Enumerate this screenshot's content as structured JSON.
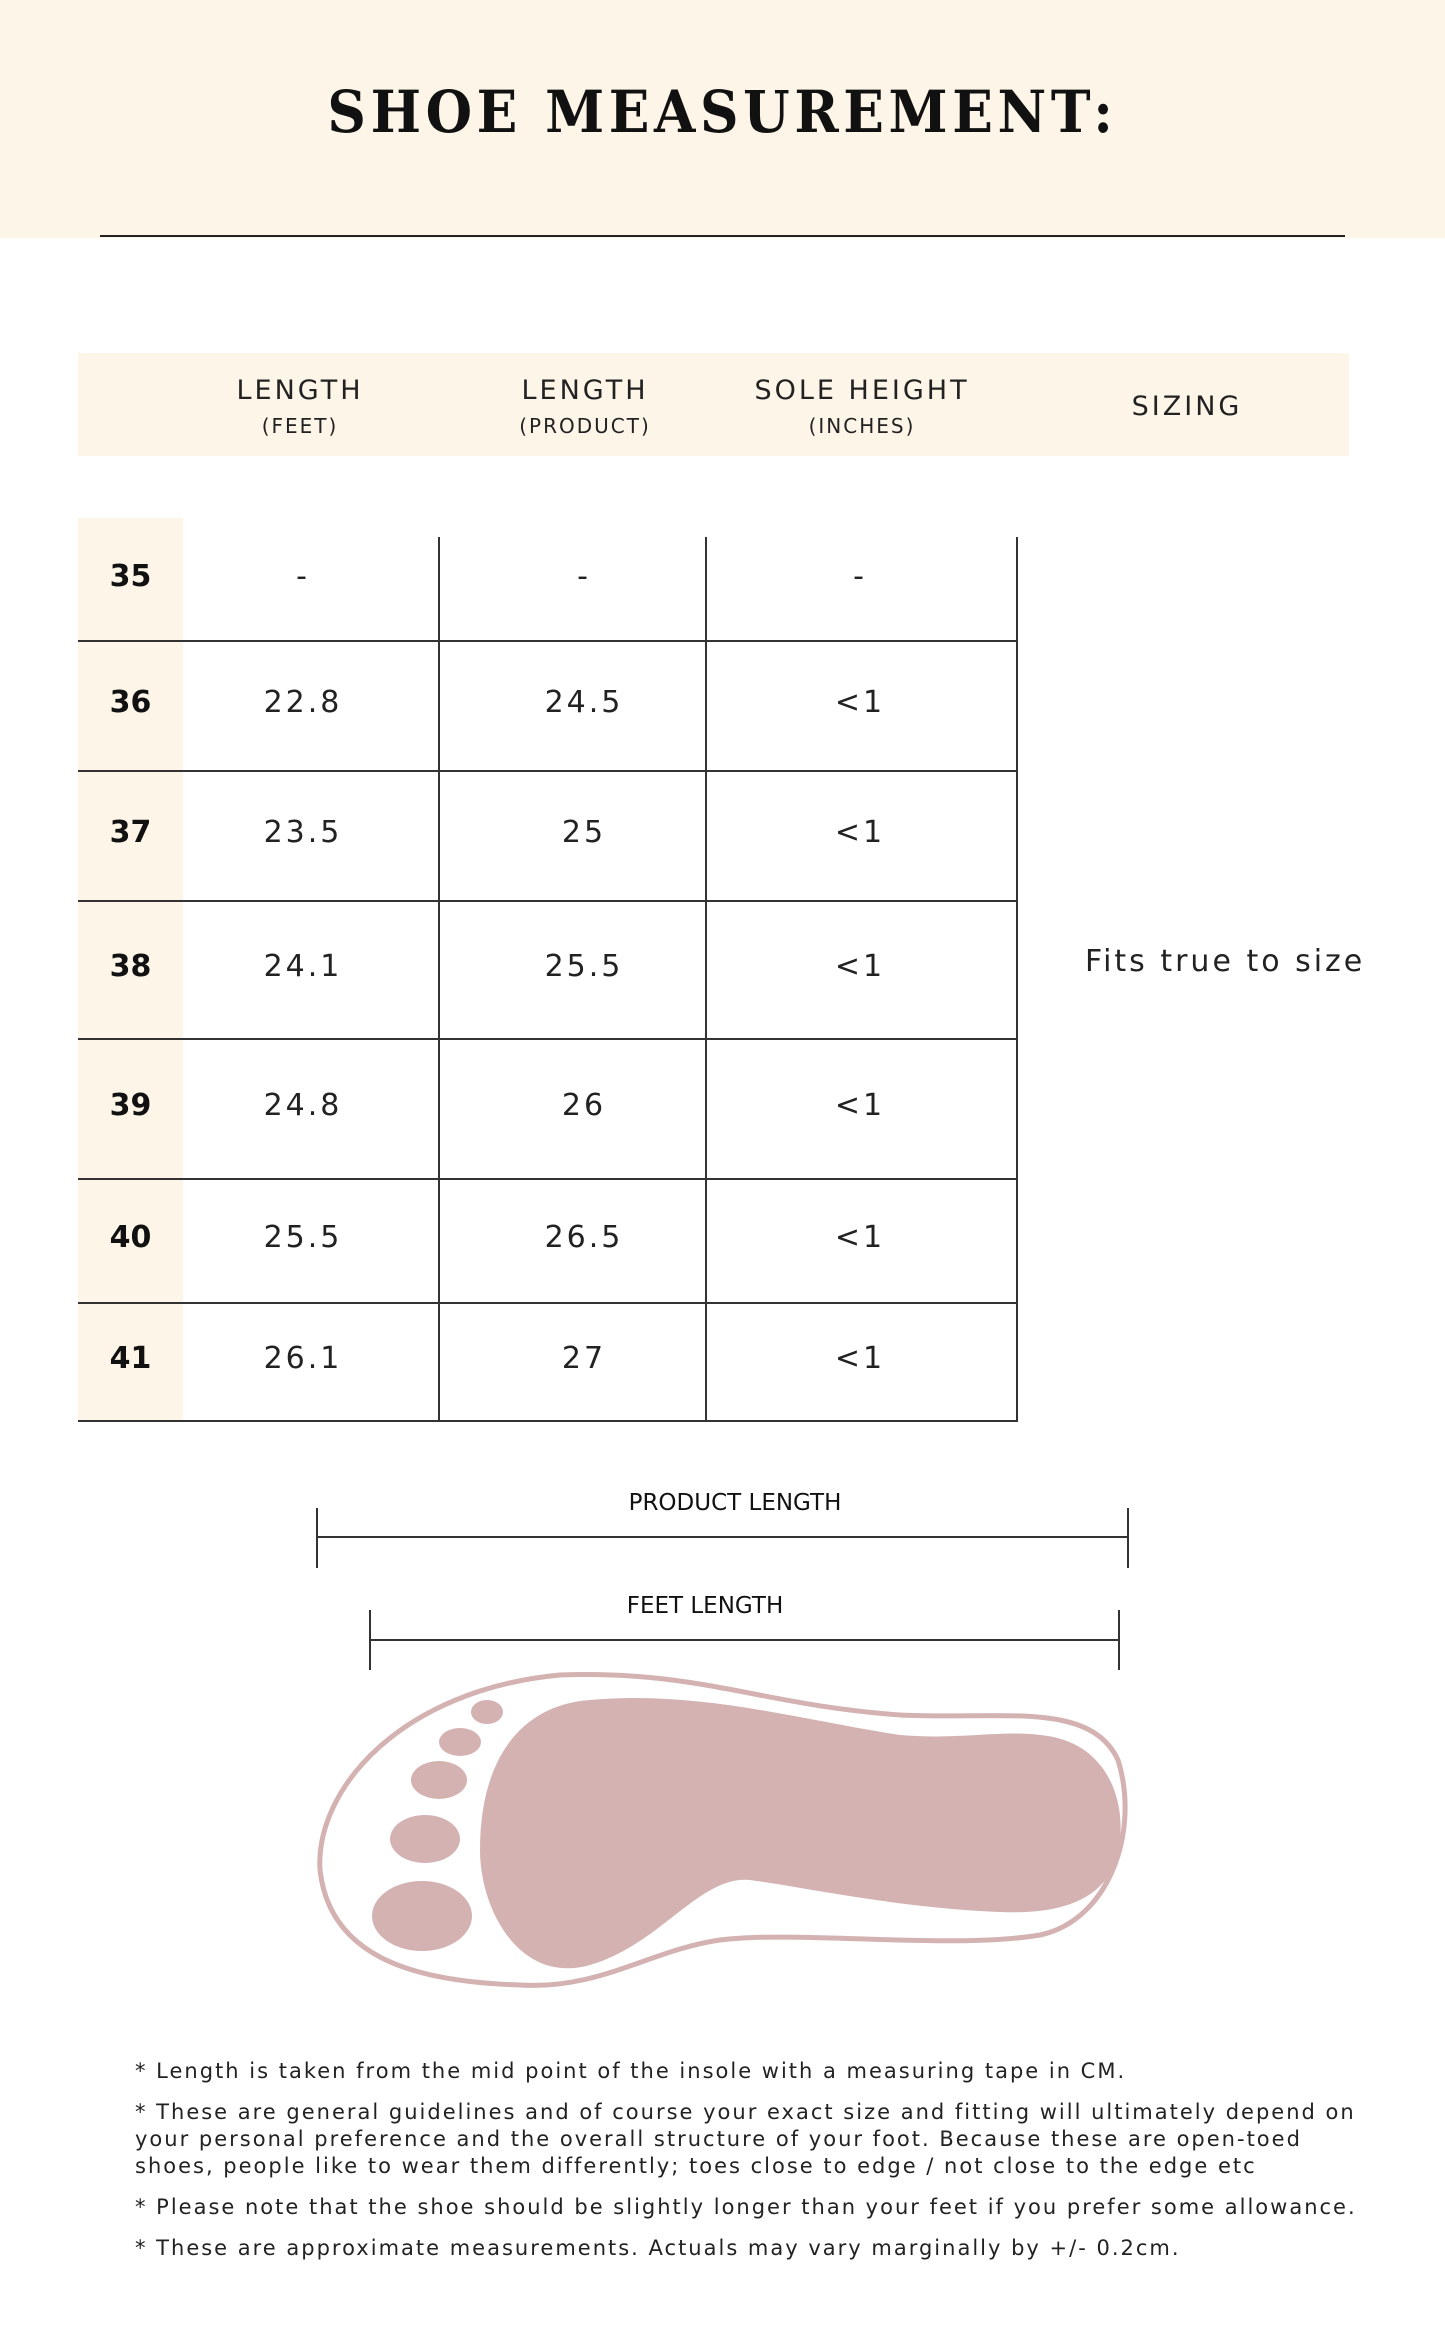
{
  "title": "SHOE MEASUREMENT:",
  "header": {
    "columns": [
      {
        "label": "LENGTH",
        "sub": "(FEET)"
      },
      {
        "label": "LENGTH",
        "sub": "(PRODUCT)"
      },
      {
        "label": "SOLE HEIGHT",
        "sub": "(INCHES)"
      },
      {
        "label": "SIZING",
        "sub": ""
      }
    ]
  },
  "rows": [
    {
      "size": "35",
      "feet": "-",
      "product": "-",
      "sole": "-"
    },
    {
      "size": "36",
      "feet": "22.8",
      "product": "24.5",
      "sole": "<1"
    },
    {
      "size": "37",
      "feet": "23.5",
      "product": "25",
      "sole": "<1"
    },
    {
      "size": "38",
      "feet": "24.1",
      "product": "25.5",
      "sole": "<1"
    },
    {
      "size": "39",
      "feet": "24.8",
      "product": "26",
      "sole": "<1"
    },
    {
      "size": "40",
      "feet": "25.5",
      "product": "26.5",
      "sole": "<1"
    },
    {
      "size": "41",
      "feet": "26.1",
      "product": "27",
      "sole": "<1"
    }
  ],
  "sizing": "Fits true to size",
  "diagram": {
    "product_length_label": "PRODUCT LENGTH",
    "feet_length_label": "FEET LENGTH",
    "foot_color": "#d4b2b2"
  },
  "notes": [
    "* Length is taken from the mid point of the insole with a measuring tape in CM.",
    "* These are general guidelines and of course your exact size and fitting will ultimately depend on your personal preference and the overall structure of your foot. Because these are open-toed shoes, people like to wear them differently; toes close to edge / not close to the edge etc",
    "* Please note that the shoe should be slightly longer than your feet if you prefer some allowance.",
    "* These are approximate measurements. Actuals may vary marginally by +/- 0.2cm."
  ]
}
